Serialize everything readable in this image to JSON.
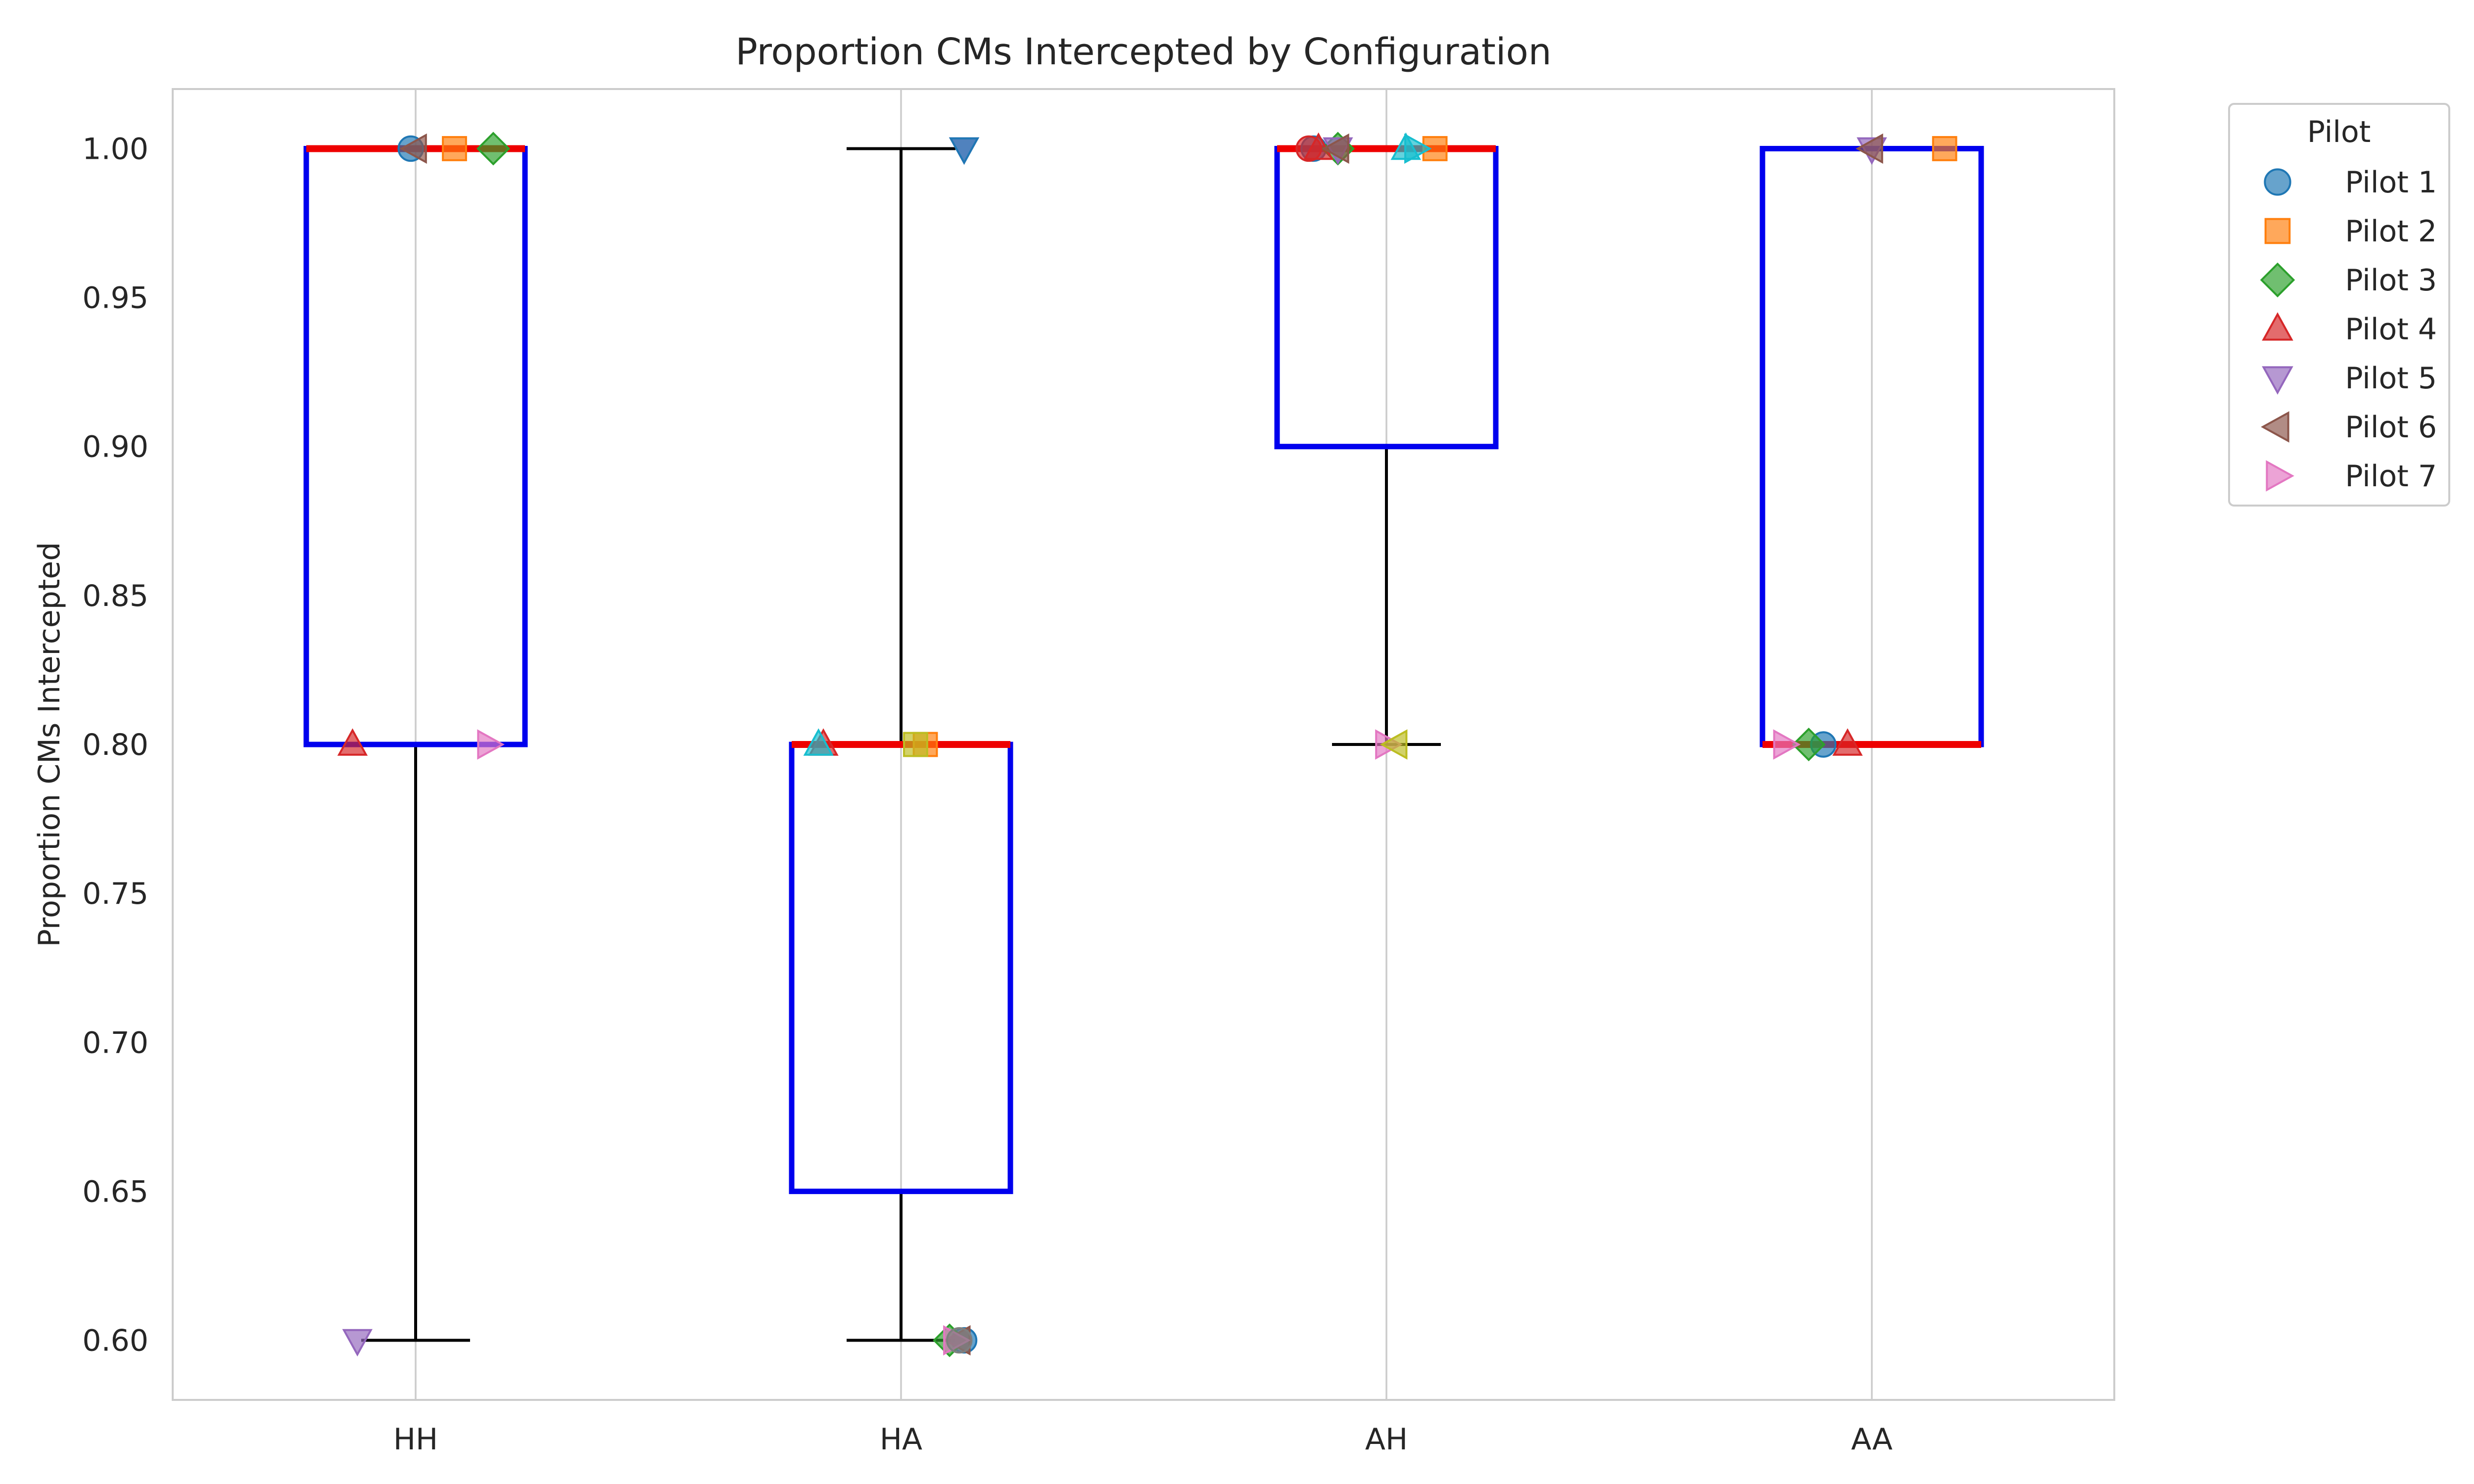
{
  "chart_data": {
    "type": "box",
    "title": "Proportion CMs Intercepted by Configuration",
    "xlabel": "",
    "ylabel": "Proportion CMs Intercepted",
    "categories": [
      "HH",
      "HA",
      "AH",
      "AA"
    ],
    "ylim": [
      0.58,
      1.02
    ],
    "yticks": [
      0.6,
      0.65,
      0.7,
      0.75,
      0.8,
      0.85,
      0.9,
      0.95,
      1.0
    ],
    "ytick_labels": [
      "0.60",
      "0.65",
      "0.70",
      "0.75",
      "0.80",
      "0.85",
      "0.90",
      "0.95",
      "1.00"
    ],
    "grid": {
      "x": true,
      "y": false
    },
    "box_color": "#0000ee",
    "median_color": "#ee0000",
    "whisker_color": "#000000",
    "boxes": [
      {
        "category": "HH",
        "whisker_low": 0.6,
        "q1": 0.8,
        "median": 1.0,
        "q3": 1.0,
        "whisker_high": 1.0
      },
      {
        "category": "HA",
        "whisker_low": 0.6,
        "q1": 0.65,
        "median": 0.8,
        "q3": 0.8,
        "whisker_high": 1.0
      },
      {
        "category": "AH",
        "whisker_low": 0.8,
        "q1": 0.9,
        "median": 1.0,
        "q3": 1.0,
        "whisker_high": 1.0
      },
      {
        "category": "AA",
        "whisker_low": 0.8,
        "q1": 0.8,
        "median": 0.8,
        "q3": 1.0,
        "whisker_high": 1.0
      }
    ],
    "legend": {
      "title": "Pilot",
      "placement": "outside-upper-right"
    },
    "series": [
      {
        "name": "Pilot 1",
        "marker": "circle",
        "color": "#1f77b4",
        "points": [
          {
            "category": "HH",
            "offset": -0.01,
            "value": 1.0
          },
          {
            "category": "HA",
            "offset": 0.13,
            "value": 0.6
          },
          {
            "category": "AH",
            "offset": -0.15,
            "value": 1.0
          },
          {
            "category": "AA",
            "offset": -0.1,
            "value": 0.8
          }
        ]
      },
      {
        "name": "Pilot 2",
        "marker": "square",
        "color": "#ff7f0e",
        "points": [
          {
            "category": "HH",
            "offset": 0.08,
            "value": 1.0
          },
          {
            "category": "HA",
            "offset": 0.05,
            "value": 0.8
          },
          {
            "category": "AH",
            "offset": 0.1,
            "value": 1.0
          },
          {
            "category": "AA",
            "offset": 0.15,
            "value": 1.0
          }
        ]
      },
      {
        "name": "Pilot 3",
        "marker": "diamond",
        "color": "#2ca02c",
        "points": [
          {
            "category": "HH",
            "offset": 0.16,
            "value": 1.0
          },
          {
            "category": "HA",
            "offset": 0.1,
            "value": 0.6
          },
          {
            "category": "AH",
            "offset": -0.1,
            "value": 1.0
          },
          {
            "category": "AA",
            "offset": -0.13,
            "value": 0.8
          }
        ]
      },
      {
        "name": "Pilot 4",
        "marker": "triangle-up",
        "color": "#d62728",
        "points": [
          {
            "category": "HH",
            "offset": -0.13,
            "value": 0.8
          },
          {
            "category": "HA",
            "offset": -0.16,
            "value": 0.8
          },
          {
            "category": "AH",
            "offset": -0.14,
            "value": 1.0
          },
          {
            "category": "AA",
            "offset": -0.05,
            "value": 0.8
          }
        ]
      },
      {
        "name": "Pilot 5",
        "marker": "triangle-down",
        "color": "#9467bd",
        "points": [
          {
            "category": "HH",
            "offset": -0.12,
            "value": 0.6
          },
          {
            "category": "HA",
            "offset": 0.13,
            "value": 1.0
          },
          {
            "category": "AH",
            "offset": -0.1,
            "value": 1.0
          },
          {
            "category": "AA",
            "offset": 0.0,
            "value": 1.0
          }
        ]
      },
      {
        "name": "Pilot 6",
        "marker": "triangle-left",
        "color": "#8c564b",
        "points": [
          {
            "category": "HH",
            "offset": 0.0,
            "value": 1.0
          },
          {
            "category": "HA",
            "offset": 0.12,
            "value": 0.6
          },
          {
            "category": "AH",
            "offset": -0.1,
            "value": 1.0
          },
          {
            "category": "AA",
            "offset": 0.0,
            "value": 1.0
          }
        ]
      },
      {
        "name": "Pilot 7",
        "marker": "triangle-right",
        "color": "#e377c2",
        "points": [
          {
            "category": "HH",
            "offset": 0.15,
            "value": 0.8
          },
          {
            "category": "HA",
            "offset": 0.11,
            "value": 0.6
          },
          {
            "category": "AH",
            "offset": 0.0,
            "value": 0.8
          },
          {
            "category": "AA",
            "offset": -0.18,
            "value": 0.8
          }
        ]
      },
      {
        "name": "",
        "marker": "triangle-up",
        "color": "#17becf",
        "points": [
          {
            "category": "HA",
            "offset": -0.17,
            "value": 0.8
          },
          {
            "category": "AH",
            "offset": 0.04,
            "value": 1.0
          }
        ]
      },
      {
        "name": "",
        "marker": "triangle-down",
        "color": "#1f77b4",
        "points": [
          {
            "category": "HA",
            "offset": 0.13,
            "value": 1.0
          }
        ]
      },
      {
        "name": "",
        "marker": "triangle-right",
        "color": "#17becf",
        "points": [
          {
            "category": "AH",
            "offset": 0.06,
            "value": 1.0
          }
        ]
      },
      {
        "name": "",
        "marker": "circle",
        "color": "#7f7f7f",
        "points": [
          {
            "category": "HA",
            "offset": 0.12,
            "value": 0.6
          }
        ]
      },
      {
        "name": "",
        "marker": "square",
        "color": "#bcbd22",
        "points": [
          {
            "category": "HA",
            "offset": 0.03,
            "value": 0.8
          }
        ]
      },
      {
        "name": "",
        "marker": "triangle-left",
        "color": "#bcbd22",
        "points": [
          {
            "category": "AH",
            "offset": 0.02,
            "value": 0.8
          }
        ]
      },
      {
        "name": "",
        "marker": "circle",
        "color": "#d62728",
        "points": [
          {
            "category": "AH",
            "offset": -0.16,
            "value": 1.0
          }
        ]
      }
    ]
  }
}
